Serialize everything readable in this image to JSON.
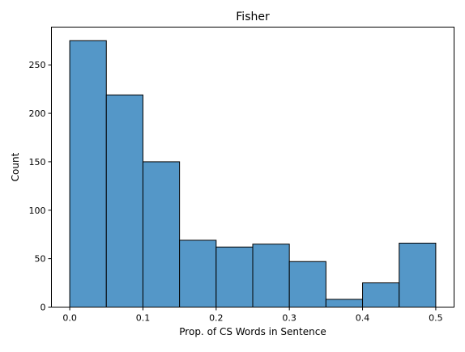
{
  "chart_data": {
    "type": "bar",
    "subtype": "histogram",
    "title": "Fisher",
    "xlabel": "Prop. of CS Words in Sentence",
    "ylabel": "Count",
    "bin_edges": [
      0.0,
      0.05,
      0.1,
      0.15,
      0.2,
      0.25,
      0.3,
      0.35,
      0.4,
      0.45,
      0.5
    ],
    "values": [
      275,
      219,
      150,
      69,
      62,
      65,
      47,
      8,
      25,
      66
    ],
    "xlim": [
      -0.025,
      0.525
    ],
    "ylim": [
      0,
      289
    ],
    "x_ticks": [
      {
        "value": 0.0,
        "label": "0.0"
      },
      {
        "value": 0.1,
        "label": "0.1"
      },
      {
        "value": 0.2,
        "label": "0.2"
      },
      {
        "value": 0.3,
        "label": "0.3"
      },
      {
        "value": 0.4,
        "label": "0.4"
      },
      {
        "value": 0.5,
        "label": "0.5"
      }
    ],
    "y_ticks": [
      {
        "value": 0,
        "label": "0"
      },
      {
        "value": 50,
        "label": "50"
      },
      {
        "value": 100,
        "label": "100"
      },
      {
        "value": 150,
        "label": "150"
      },
      {
        "value": 200,
        "label": "200"
      },
      {
        "value": 250,
        "label": "250"
      }
    ],
    "grid": false,
    "bar_color": "#5497c8",
    "edge_color": "#000000"
  }
}
